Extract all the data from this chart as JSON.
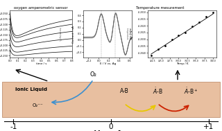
{
  "title_left": "oxygen amperometric sensor",
  "title_right": "Temperature mesurement",
  "ionic_liquid_label": "Ionic Liquid",
  "o2_label": "O₂",
  "o2minus_label": "O₂⁻⁻",
  "axis_label": "V vs. Ag",
  "minus1": "-1",
  "zero": "0",
  "plus1": "+1",
  "box_color": "#e8bfa0",
  "box_edge_color": "#c09070",
  "arrow_blue": "#3a8fd0",
  "arrow_yellow": "#e8c800",
  "arrow_red": "#cc2200",
  "arrow_black": "#000000"
}
